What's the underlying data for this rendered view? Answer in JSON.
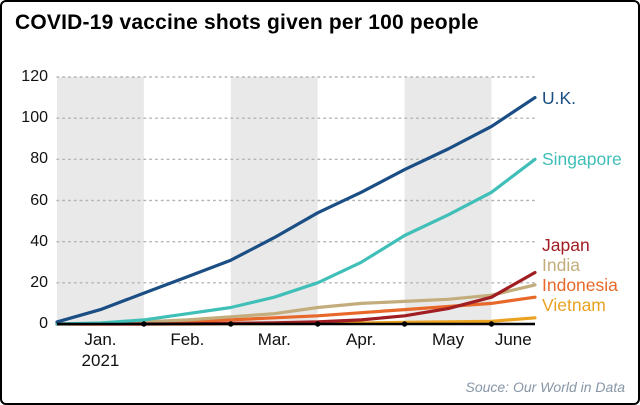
{
  "title": "COVID-19 vaccine shots given per 100 people",
  "source": "Souce: Our World in Data",
  "chart_data": {
    "type": "line",
    "title": "COVID-19 vaccine shots given per 100 people",
    "xlabel": "",
    "ylabel": "",
    "ylim": [
      0,
      120
    ],
    "yticks": [
      0,
      20,
      40,
      60,
      80,
      100,
      120
    ],
    "xticks": [
      {
        "label": "Jan.",
        "sub": "2021"
      },
      {
        "label": "Feb."
      },
      {
        "label": "Mar."
      },
      {
        "label": "Apr."
      },
      {
        "label": "May"
      },
      {
        "label": "June"
      }
    ],
    "x_unit": "months since Jan 1, 2021",
    "x": [
      0,
      0.5,
      1,
      1.5,
      2,
      2.5,
      3,
      3.5,
      4,
      4.5,
      5,
      5.5
    ],
    "series": [
      {
        "id": "uk",
        "name": "U.K.",
        "color": "#1a4e84",
        "values": [
          1,
          7,
          15,
          23,
          31,
          42,
          54,
          64,
          75,
          85,
          96,
          110
        ]
      },
      {
        "id": "singapore",
        "name": "Singapore",
        "color": "#40bfb8",
        "values": [
          0,
          0.5,
          2,
          5,
          8,
          13,
          20,
          30,
          43,
          53,
          64,
          80
        ]
      },
      {
        "id": "japan",
        "name": "Japan",
        "color": "#a01d21",
        "values": [
          0,
          0,
          0,
          0.1,
          0.3,
          0.6,
          1,
          2,
          4,
          7.5,
          13,
          25
        ]
      },
      {
        "id": "india",
        "name": "India",
        "color": "#c3ad7d",
        "values": [
          0,
          0.2,
          1,
          2,
          3.5,
          5,
          8,
          10,
          11,
          12,
          14,
          19
        ]
      },
      {
        "id": "indonesia",
        "name": "Indonesia",
        "color": "#e8682a",
        "values": [
          0,
          0.1,
          0.5,
          1.2,
          2,
          3,
          4,
          5.5,
          7,
          8.5,
          10,
          13
        ]
      },
      {
        "id": "vietnam",
        "name": "Vietnam",
        "color": "#eaa221",
        "values": [
          0,
          0,
          0,
          0,
          0.1,
          0.2,
          0.3,
          0.5,
          0.8,
          1,
          1.3,
          3
        ]
      }
    ],
    "layout": {
      "shaded_months": [
        0,
        2,
        4
      ],
      "band_color": "#e9e9e9",
      "grid": "dotted-horizontal",
      "legend_position": "right-of-lines"
    }
  }
}
